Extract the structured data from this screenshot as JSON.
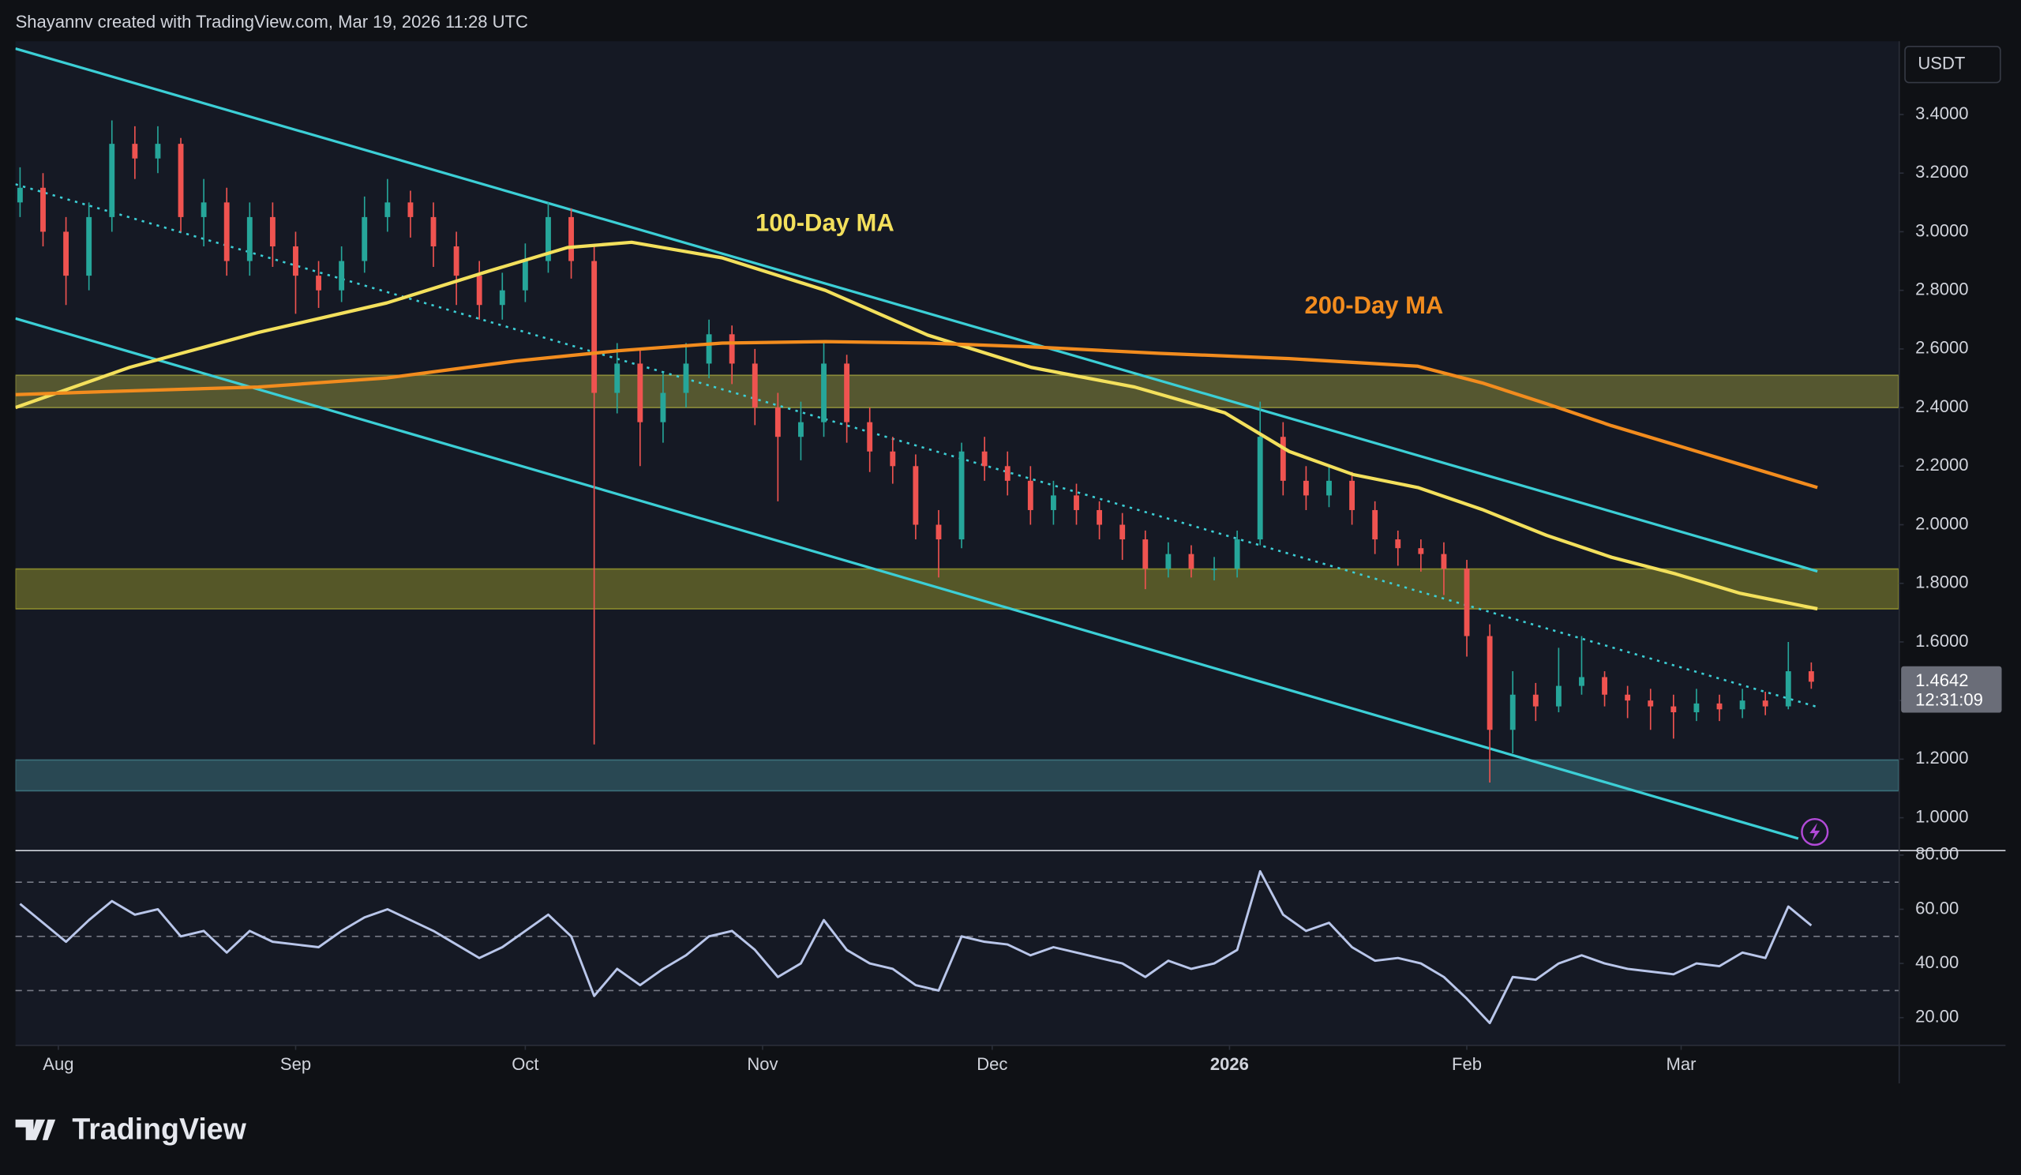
{
  "header": {
    "text": "Shayannv created with TradingView.com, Mar 19, 2026 11:28 UTC"
  },
  "footer": {
    "brand": "TradingView"
  },
  "chart_data": [
    {
      "type": "candlestick",
      "currency": "USDT",
      "xlim": [
        -5.6,
        240.4
      ],
      "xticks": [
        {
          "value": 0,
          "label": "Aug"
        },
        {
          "value": 31,
          "label": "Sep"
        },
        {
          "value": 61,
          "label": "Oct"
        },
        {
          "value": 92,
          "label": "Nov"
        },
        {
          "value": 122,
          "label": "Dec"
        },
        {
          "value": 153,
          "label": "2026"
        },
        {
          "value": 184,
          "label": "Feb"
        },
        {
          "value": 212,
          "label": "Mar"
        }
      ],
      "ylim": [
        0.89,
        3.65
      ],
      "yticks": [
        {
          "value": 1.0,
          "label": "1.0000"
        },
        {
          "value": 1.2,
          "label": "1.2000"
        },
        {
          "value": 1.4,
          "label": "1.4000"
        },
        {
          "value": 1.6,
          "label": "1.6000"
        },
        {
          "value": 1.8,
          "label": "1.8000"
        },
        {
          "value": 2.0,
          "label": "2.0000"
        },
        {
          "value": 2.2,
          "label": "2.2000"
        },
        {
          "value": 2.4,
          "label": "2.4000"
        },
        {
          "value": 2.6,
          "label": "2.6000"
        },
        {
          "value": 2.8,
          "label": "2.8000"
        },
        {
          "value": 3.0,
          "label": "3.0000"
        },
        {
          "value": 3.2,
          "label": "3.2000"
        },
        {
          "value": 3.4,
          "label": "3.4000"
        }
      ],
      "up_color": "#26a69a",
      "down_color": "#ef5350",
      "candles": {
        "x": [
          -5,
          -2,
          1,
          4,
          7,
          10,
          13,
          16,
          19,
          22,
          25,
          28,
          31,
          34,
          37,
          40,
          43,
          46,
          49,
          52,
          55,
          58,
          61,
          64,
          67,
          70,
          73,
          76,
          79,
          82,
          85,
          88,
          91,
          94,
          97,
          100,
          103,
          106,
          109,
          112,
          115,
          118,
          121,
          124,
          127,
          130,
          133,
          136,
          139,
          142,
          145,
          148,
          151,
          154,
          157,
          160,
          163,
          166,
          169,
          172,
          175,
          178,
          181,
          184,
          187,
          190,
          193,
          196,
          199,
          202,
          205,
          208,
          211,
          214,
          217,
          220,
          223,
          226,
          229
        ],
        "open": [
          3.1,
          3.15,
          3.0,
          2.85,
          3.05,
          3.3,
          3.25,
          3.3,
          3.05,
          3.1,
          2.9,
          3.05,
          2.95,
          2.85,
          2.8,
          2.9,
          3.05,
          3.1,
          3.05,
          2.95,
          2.85,
          2.75,
          2.8,
          2.9,
          3.05,
          2.9,
          2.45,
          2.55,
          2.35,
          2.45,
          2.55,
          2.65,
          2.55,
          2.4,
          2.3,
          2.35,
          2.55,
          2.35,
          2.25,
          2.2,
          2.0,
          1.95,
          2.25,
          2.2,
          2.15,
          2.05,
          2.1,
          2.05,
          2.0,
          1.95,
          1.85,
          1.9,
          1.85,
          1.85,
          1.95,
          2.3,
          2.15,
          2.1,
          2.15,
          2.05,
          1.95,
          1.92,
          1.9,
          1.85,
          1.62,
          1.3,
          1.42,
          1.38,
          1.45,
          1.48,
          1.42,
          1.4,
          1.38,
          1.36,
          1.39,
          1.37,
          1.4,
          1.38,
          1.5
        ],
        "high": [
          3.22,
          3.2,
          3.05,
          3.1,
          3.38,
          3.36,
          3.36,
          3.32,
          3.18,
          3.15,
          3.1,
          3.1,
          3.0,
          2.9,
          2.95,
          3.12,
          3.18,
          3.14,
          3.1,
          3.0,
          2.9,
          2.86,
          2.96,
          3.1,
          3.08,
          2.95,
          2.62,
          2.6,
          2.52,
          2.62,
          2.7,
          2.68,
          2.6,
          2.45,
          2.42,
          2.62,
          2.58,
          2.4,
          2.3,
          2.24,
          2.05,
          2.28,
          2.3,
          2.25,
          2.2,
          2.15,
          2.14,
          2.08,
          2.04,
          1.98,
          1.94,
          1.93,
          1.89,
          1.98,
          2.42,
          2.35,
          2.2,
          2.2,
          2.18,
          2.08,
          1.98,
          1.95,
          1.94,
          1.88,
          1.66,
          1.5,
          1.46,
          1.58,
          1.62,
          1.5,
          1.45,
          1.44,
          1.42,
          1.44,
          1.42,
          1.44,
          1.43,
          1.6,
          1.53
        ],
        "low": [
          3.05,
          2.95,
          2.75,
          2.8,
          3.0,
          3.18,
          3.2,
          3.0,
          2.95,
          2.85,
          2.85,
          2.88,
          2.72,
          2.74,
          2.76,
          2.86,
          3.0,
          2.98,
          2.88,
          2.75,
          2.7,
          2.7,
          2.76,
          2.86,
          2.84,
          1.25,
          2.38,
          2.2,
          2.28,
          2.4,
          2.5,
          2.48,
          2.34,
          2.08,
          2.22,
          2.3,
          2.28,
          2.18,
          2.14,
          1.95,
          1.82,
          1.92,
          2.15,
          2.1,
          2.0,
          2.0,
          2.0,
          1.95,
          1.88,
          1.78,
          1.82,
          1.82,
          1.81,
          1.82,
          1.93,
          2.1,
          2.05,
          2.06,
          2.0,
          1.9,
          1.86,
          1.84,
          1.76,
          1.55,
          1.12,
          1.22,
          1.33,
          1.36,
          1.42,
          1.38,
          1.34,
          1.3,
          1.27,
          1.33,
          1.33,
          1.34,
          1.35,
          1.37,
          1.44
        ],
        "close": [
          3.15,
          3.0,
          2.85,
          3.05,
          3.3,
          3.25,
          3.3,
          3.05,
          3.1,
          2.9,
          3.05,
          2.95,
          2.85,
          2.8,
          2.9,
          3.05,
          3.1,
          3.05,
          2.95,
          2.85,
          2.75,
          2.8,
          2.9,
          3.05,
          2.9,
          2.45,
          2.55,
          2.35,
          2.45,
          2.55,
          2.65,
          2.55,
          2.4,
          2.3,
          2.35,
          2.55,
          2.35,
          2.25,
          2.2,
          2.0,
          1.95,
          2.25,
          2.2,
          2.15,
          2.05,
          2.1,
          2.05,
          2.0,
          1.95,
          1.85,
          1.9,
          1.85,
          1.85,
          1.95,
          2.3,
          2.15,
          2.1,
          2.15,
          2.05,
          1.95,
          1.92,
          1.9,
          1.85,
          1.62,
          1.3,
          1.42,
          1.38,
          1.45,
          1.48,
          1.42,
          1.4,
          1.38,
          1.36,
          1.39,
          1.37,
          1.4,
          1.38,
          1.5,
          1.4642
        ]
      },
      "series": [
        {
          "name": "100-Day MA",
          "color": "#f3e05c",
          "x": [
            -5.6,
            9.3,
            26.1,
            42.9,
            56.4,
            66.5,
            74.9,
            86.7,
            100.2,
            113.6,
            127.1,
            140.6,
            152.4,
            160.8,
            169.2,
            177.6,
            186.0,
            194.4,
            202.9,
            211.3,
            219.7,
            229.8
          ],
          "values": [
            2.4,
            2.537,
            2.656,
            2.757,
            2.867,
            2.946,
            2.964,
            2.911,
            2.8,
            2.647,
            2.537,
            2.47,
            2.382,
            2.25,
            2.171,
            2.127,
            2.052,
            1.964,
            1.889,
            1.832,
            1.766,
            1.713
          ]
        },
        {
          "name": "200-Day MA",
          "color": "#f28c1e",
          "x": [
            -5.6,
            9.3,
            26.1,
            42.9,
            59.8,
            73.2,
            86.7,
            100.2,
            113.6,
            127.1,
            143.9,
            160.8,
            177.6,
            186.0,
            194.4,
            202.9,
            211.3,
            219.7,
            229.8
          ],
          "values": [
            2.444,
            2.457,
            2.47,
            2.501,
            2.559,
            2.594,
            2.62,
            2.625,
            2.62,
            2.607,
            2.585,
            2.567,
            2.541,
            2.484,
            2.413,
            2.338,
            2.272,
            2.206,
            2.127
          ]
        }
      ],
      "trendlines": [
        {
          "x": [
            -5.6,
            229.8
          ],
          "values": [
            3.625,
            1.841
          ],
          "color": "#3ccfd6",
          "style": "solid"
        },
        {
          "x": [
            -5.6,
            227.3
          ],
          "values": [
            2.704,
            0.929
          ],
          "color": "#3ccfd6",
          "style": "solid"
        },
        {
          "x": [
            -5.6,
            229.8
          ],
          "values": [
            3.162,
            1.378
          ],
          "color": "#3ccfd6",
          "style": "dotted"
        }
      ],
      "zones": [
        {
          "range": [
            2.4,
            2.51
          ],
          "color": "#8a8a3a"
        },
        {
          "range": [
            1.713,
            1.849
          ],
          "color": "#8a8a2c"
        },
        {
          "range": [
            1.092,
            1.197
          ],
          "color": "#3b6f7a"
        }
      ],
      "last_price": 1.4642,
      "countdown": "12:31:09"
    },
    {
      "type": "line",
      "ylim": [
        10,
        81.4
      ],
      "yticks": [
        {
          "value": 20,
          "label": "20.00"
        },
        {
          "value": 40,
          "label": "40.00"
        },
        {
          "value": 60,
          "label": "60.00"
        },
        {
          "value": 80,
          "label": "80.00"
        }
      ],
      "levels": [
        70,
        50,
        30
      ],
      "series": [
        {
          "color": "#b9c6ea",
          "x": [
            -5,
            -2,
            1,
            4,
            7,
            10,
            13,
            16,
            19,
            22,
            25,
            28,
            31,
            34,
            37,
            40,
            43,
            46,
            49,
            52,
            55,
            58,
            61,
            64,
            67,
            70,
            73,
            76,
            79,
            82,
            85,
            88,
            91,
            94,
            97,
            100,
            103,
            106,
            109,
            112,
            115,
            118,
            121,
            124,
            127,
            130,
            133,
            136,
            139,
            142,
            145,
            148,
            151,
            154,
            157,
            160,
            163,
            166,
            169,
            172,
            175,
            178,
            181,
            184,
            187,
            190,
            193,
            196,
            199,
            202,
            205,
            208,
            211,
            214,
            217,
            220,
            223,
            226,
            229
          ],
          "values": [
            62,
            55,
            48,
            56,
            63,
            58,
            60,
            50,
            52,
            44,
            52,
            48,
            47,
            46,
            52,
            57,
            60,
            56,
            52,
            47,
            42,
            46,
            52,
            58,
            50,
            28,
            38,
            32,
            38,
            43,
            50,
            52,
            45,
            35,
            40,
            56,
            45,
            40,
            38,
            32,
            30,
            50,
            48,
            47,
            43,
            46,
            44,
            42,
            40,
            35,
            41,
            38,
            40,
            45,
            74,
            58,
            52,
            55,
            46,
            41,
            42,
            40,
            35,
            27,
            18,
            35,
            34,
            40,
            43,
            40,
            38,
            37,
            36,
            40,
            39,
            44,
            42,
            61,
            54
          ]
        }
      ]
    }
  ]
}
